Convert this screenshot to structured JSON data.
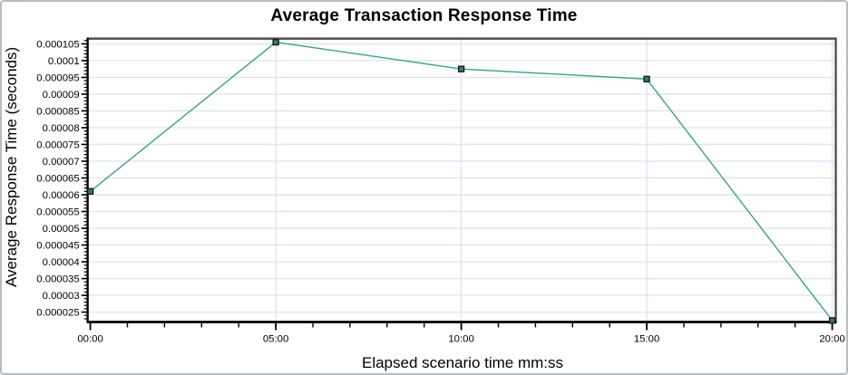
{
  "window": {
    "background": "#ffffff",
    "border_color": "#b7bcc1"
  },
  "chart_data": {
    "type": "line",
    "title": "Average Transaction Response Time",
    "xlabel": "Elapsed scenario time mm:ss",
    "ylabel": "Average Response Time (seconds)",
    "x_categories": [
      "00:00",
      "05:00",
      "10:00",
      "15:00",
      "20:00"
    ],
    "x_minutes": [
      0,
      5,
      10,
      15,
      20
    ],
    "values": [
      6.1e-05,
      0.0001055,
      9.75e-05,
      9.45e-05,
      2.25e-05
    ],
    "y_tick_labels": [
      "0.000105",
      "0.0001",
      "0.000095",
      "0.00009",
      "0.000085",
      "0.00008",
      "0.000075",
      "0.00007",
      "0.000065",
      "0.00006",
      "0.000055",
      "0.00005",
      "0.000045",
      "0.00004",
      "0.000035",
      "0.00003",
      "0.000025"
    ],
    "y_tick_values": [
      0.000105,
      0.0001,
      9.5e-05,
      9e-05,
      8.5e-05,
      8e-05,
      7.5e-05,
      7e-05,
      6.5e-05,
      6e-05,
      5.5e-05,
      5e-05,
      4.5e-05,
      4e-05,
      3.5e-05,
      3e-05,
      2.5e-05
    ],
    "ylim": [
      2.23e-05,
      0.0001063
    ],
    "xlim_minutes": [
      0,
      20
    ],
    "grid": true,
    "legend_position": "none",
    "marker_shape": "square",
    "y_minor_step": 1e-06,
    "x_minor_step_minutes": 1,
    "colors": {
      "line": "#3aa183",
      "marker_fill": "#2b7f67",
      "marker_stroke": "#1a1a1a",
      "grid": "#dfe5f3",
      "axis": "#000000",
      "frame": "#4f4f4f",
      "text": "#000000"
    }
  }
}
